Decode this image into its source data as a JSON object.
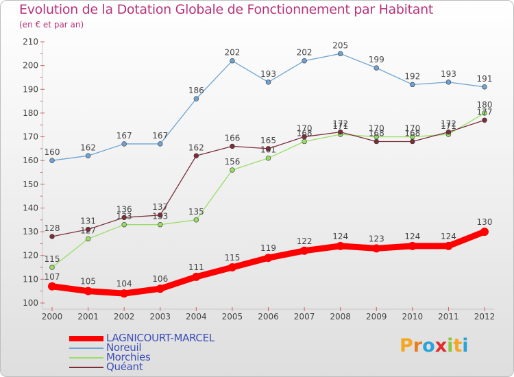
{
  "header": {
    "title": "Evolution de la Dotation Globale de Fonctionnement par Habitant",
    "subtitle": "(en € et par an)"
  },
  "logo": {
    "letters": [
      "P",
      "r",
      "o",
      "x",
      "i",
      "t",
      "i"
    ],
    "colors": [
      "#f5a623",
      "#e67e22",
      "#2aa3d8",
      "#e02d2d",
      "#8cc63f",
      "#f5a623",
      "#2aa3d8"
    ]
  },
  "chart_data": {
    "type": "line",
    "x": [
      2000,
      2001,
      2002,
      2003,
      2004,
      2005,
      2006,
      2007,
      2008,
      2009,
      2010,
      2011,
      2012
    ],
    "ylim": [
      100,
      210
    ],
    "yticks": [
      100,
      110,
      120,
      130,
      140,
      150,
      160,
      170,
      180,
      190,
      200,
      210
    ],
    "grid": false,
    "legend_position": "bottom-left",
    "series": [
      {
        "name": "LAGNICOURT-MARCEL",
        "color": "#ff0000",
        "values": [
          107,
          105,
          104,
          106,
          111,
          115,
          119,
          122,
          124,
          123,
          124,
          124,
          130
        ]
      },
      {
        "name": "Noreuil",
        "color": "#6fa3d3",
        "values": [
          160,
          162,
          167,
          167,
          186,
          202,
          193,
          202,
          205,
          199,
          192,
          193,
          191
        ]
      },
      {
        "name": "Morchies",
        "color": "#99dd66",
        "values": [
          115,
          127,
          133,
          133,
          135,
          156,
          161,
          168,
          171,
          170,
          170,
          171,
          180
        ]
      },
      {
        "name": "Quéant",
        "color": "#7a2e3a",
        "values": [
          128,
          131,
          136,
          137,
          162,
          166,
          165,
          170,
          172,
          168,
          168,
          172,
          177
        ]
      }
    ]
  }
}
